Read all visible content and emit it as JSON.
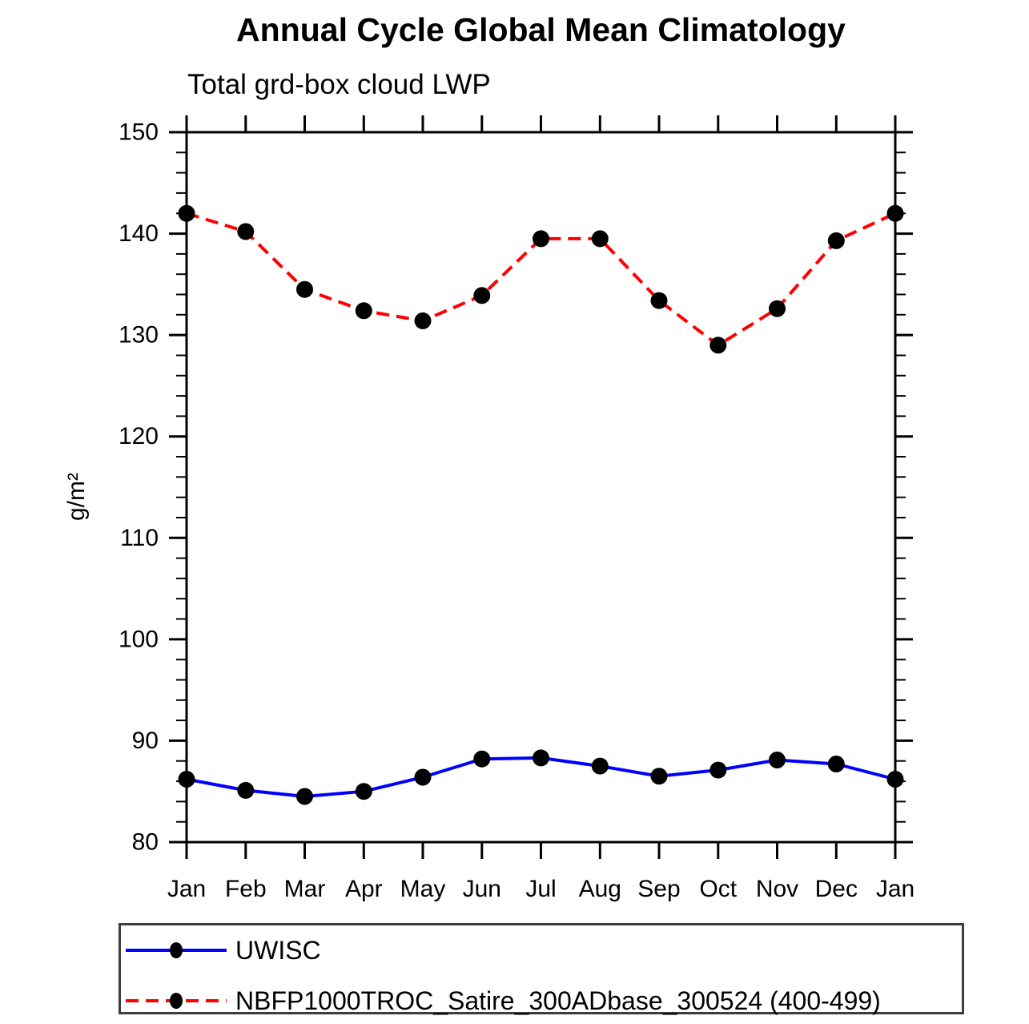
{
  "chart_data": {
    "type": "line",
    "title": "Annual Cycle Global Mean Climatology",
    "subtitle": "Total grd-box cloud LWP",
    "ylabel": "g/m²",
    "xlabel": "",
    "ylim": [
      80,
      150
    ],
    "yticks_major": [
      80,
      90,
      100,
      110,
      120,
      130,
      140,
      150
    ],
    "ytick_minor_step": 2,
    "grid": false,
    "legend_position": "bottom-box",
    "x": [
      "Jan",
      "Feb",
      "Mar",
      "Apr",
      "May",
      "Jun",
      "Jul",
      "Aug",
      "Sep",
      "Oct",
      "Nov",
      "Dec",
      "Jan"
    ],
    "series": [
      {
        "name": "UWISC",
        "color": "#0000ff",
        "line_style": "solid",
        "marker": "filled-circle",
        "marker_color": "#000000",
        "values": [
          86.2,
          85.1,
          84.5,
          85.0,
          86.4,
          88.2,
          88.3,
          87.5,
          86.5,
          87.1,
          88.1,
          87.7,
          86.2
        ]
      },
      {
        "name": "NBFP1000TROC_Satire_300ADbase_300524 (400-499)",
        "color": "#ff0000",
        "line_style": "dashed",
        "marker": "filled-circle",
        "marker_color": "#000000",
        "values": [
          142.0,
          140.2,
          134.5,
          132.4,
          131.4,
          133.9,
          139.5,
          139.5,
          133.4,
          129.0,
          132.6,
          139.3,
          142.0
        ]
      }
    ]
  }
}
